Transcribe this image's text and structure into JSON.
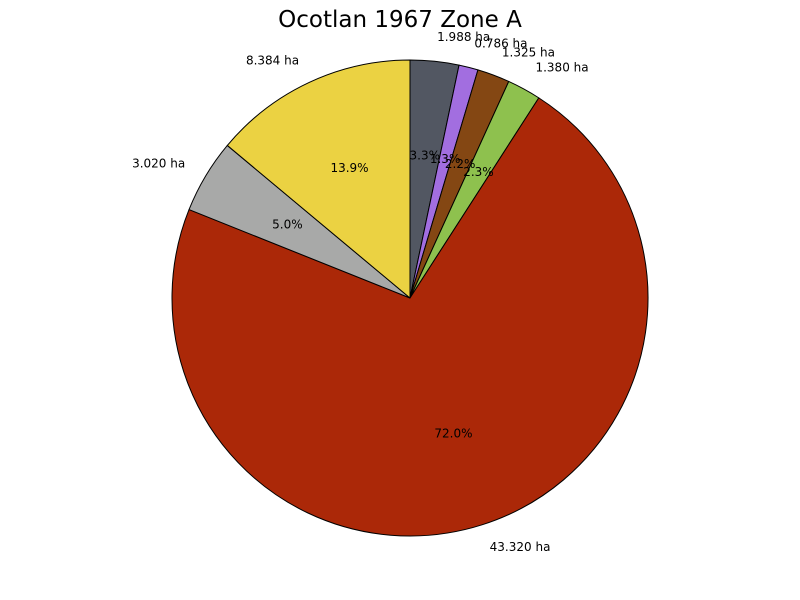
{
  "chart_data": {
    "type": "pie",
    "title": "Ocotlan 1967 Zone A",
    "unit": "ha",
    "start_angle_deg": 90,
    "direction": "clockwise",
    "slices": [
      {
        "label": "1.988 ha",
        "value": 1.988,
        "percent_label": "3.3%",
        "color": "#525762"
      },
      {
        "label": "0.786 ha",
        "value": 0.786,
        "percent_label": "1.3%",
        "color": "#a26ee0"
      },
      {
        "label": "1.325 ha",
        "value": 1.325,
        "percent_label": "2.2%",
        "color": "#844713"
      },
      {
        "label": "1.380 ha",
        "value": 1.38,
        "percent_label": "2.3%",
        "color": "#8ec14e"
      },
      {
        "label": "43.320 ha",
        "value": 43.32,
        "percent_label": "72.0%",
        "color": "#ab2808"
      },
      {
        "label": "3.020 ha",
        "value": 3.02,
        "percent_label": "5.0%",
        "color": "#a8a9a8"
      },
      {
        "label": "8.384 ha",
        "value": 8.384,
        "percent_label": "13.9%",
        "color": "#ebd242"
      }
    ],
    "edge_color": "#000000"
  }
}
